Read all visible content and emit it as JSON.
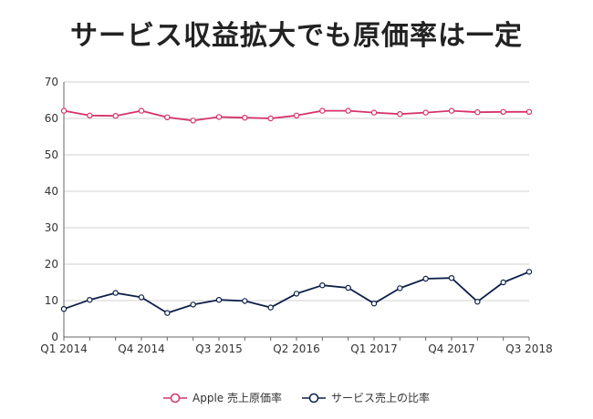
{
  "chart_data": {
    "type": "line",
    "title": "サービス収益拡大でも原価率は一定",
    "xlabel": "",
    "ylabel": "",
    "ylim": [
      0,
      70
    ],
    "yticks": [
      0,
      10,
      20,
      30,
      40,
      50,
      60,
      70
    ],
    "grid": true,
    "legend_position": "bottom",
    "categories": [
      "Q1 2014",
      "Q2 2014",
      "Q3 2014",
      "Q4 2014",
      "Q1 2015",
      "Q2 2015",
      "Q3 2015",
      "Q4 2015",
      "Q1 2016",
      "Q2 2016",
      "Q3 2016",
      "Q4 2016",
      "Q1 2017",
      "Q2 2017",
      "Q3 2017",
      "Q4 2017",
      "Q1 2018",
      "Q2 2018",
      "Q3 2018"
    ],
    "x_tick_labels": [
      "Q1 2014",
      "Q4 2014",
      "Q3 2015",
      "Q2 2016",
      "Q1 2017",
      "Q4 2017",
      "Q3 2018"
    ],
    "series": [
      {
        "name": "Apple 売上原価率",
        "color": "#d6336c",
        "values": [
          62.1,
          60.8,
          60.7,
          62.1,
          60.3,
          59.4,
          60.4,
          60.2,
          60.0,
          60.8,
          62.1,
          62.1,
          61.6,
          61.2,
          61.6,
          62.1,
          61.7,
          61.8,
          61.8
        ]
      },
      {
        "name": "サービス売上の比率",
        "color": "#0d1f4a",
        "values": [
          7.7,
          10.2,
          12.1,
          10.9,
          6.6,
          8.9,
          10.2,
          9.9,
          8.1,
          11.9,
          14.2,
          13.5,
          9.2,
          13.4,
          16.0,
          16.2,
          9.7,
          15.0,
          17.9
        ]
      }
    ]
  }
}
